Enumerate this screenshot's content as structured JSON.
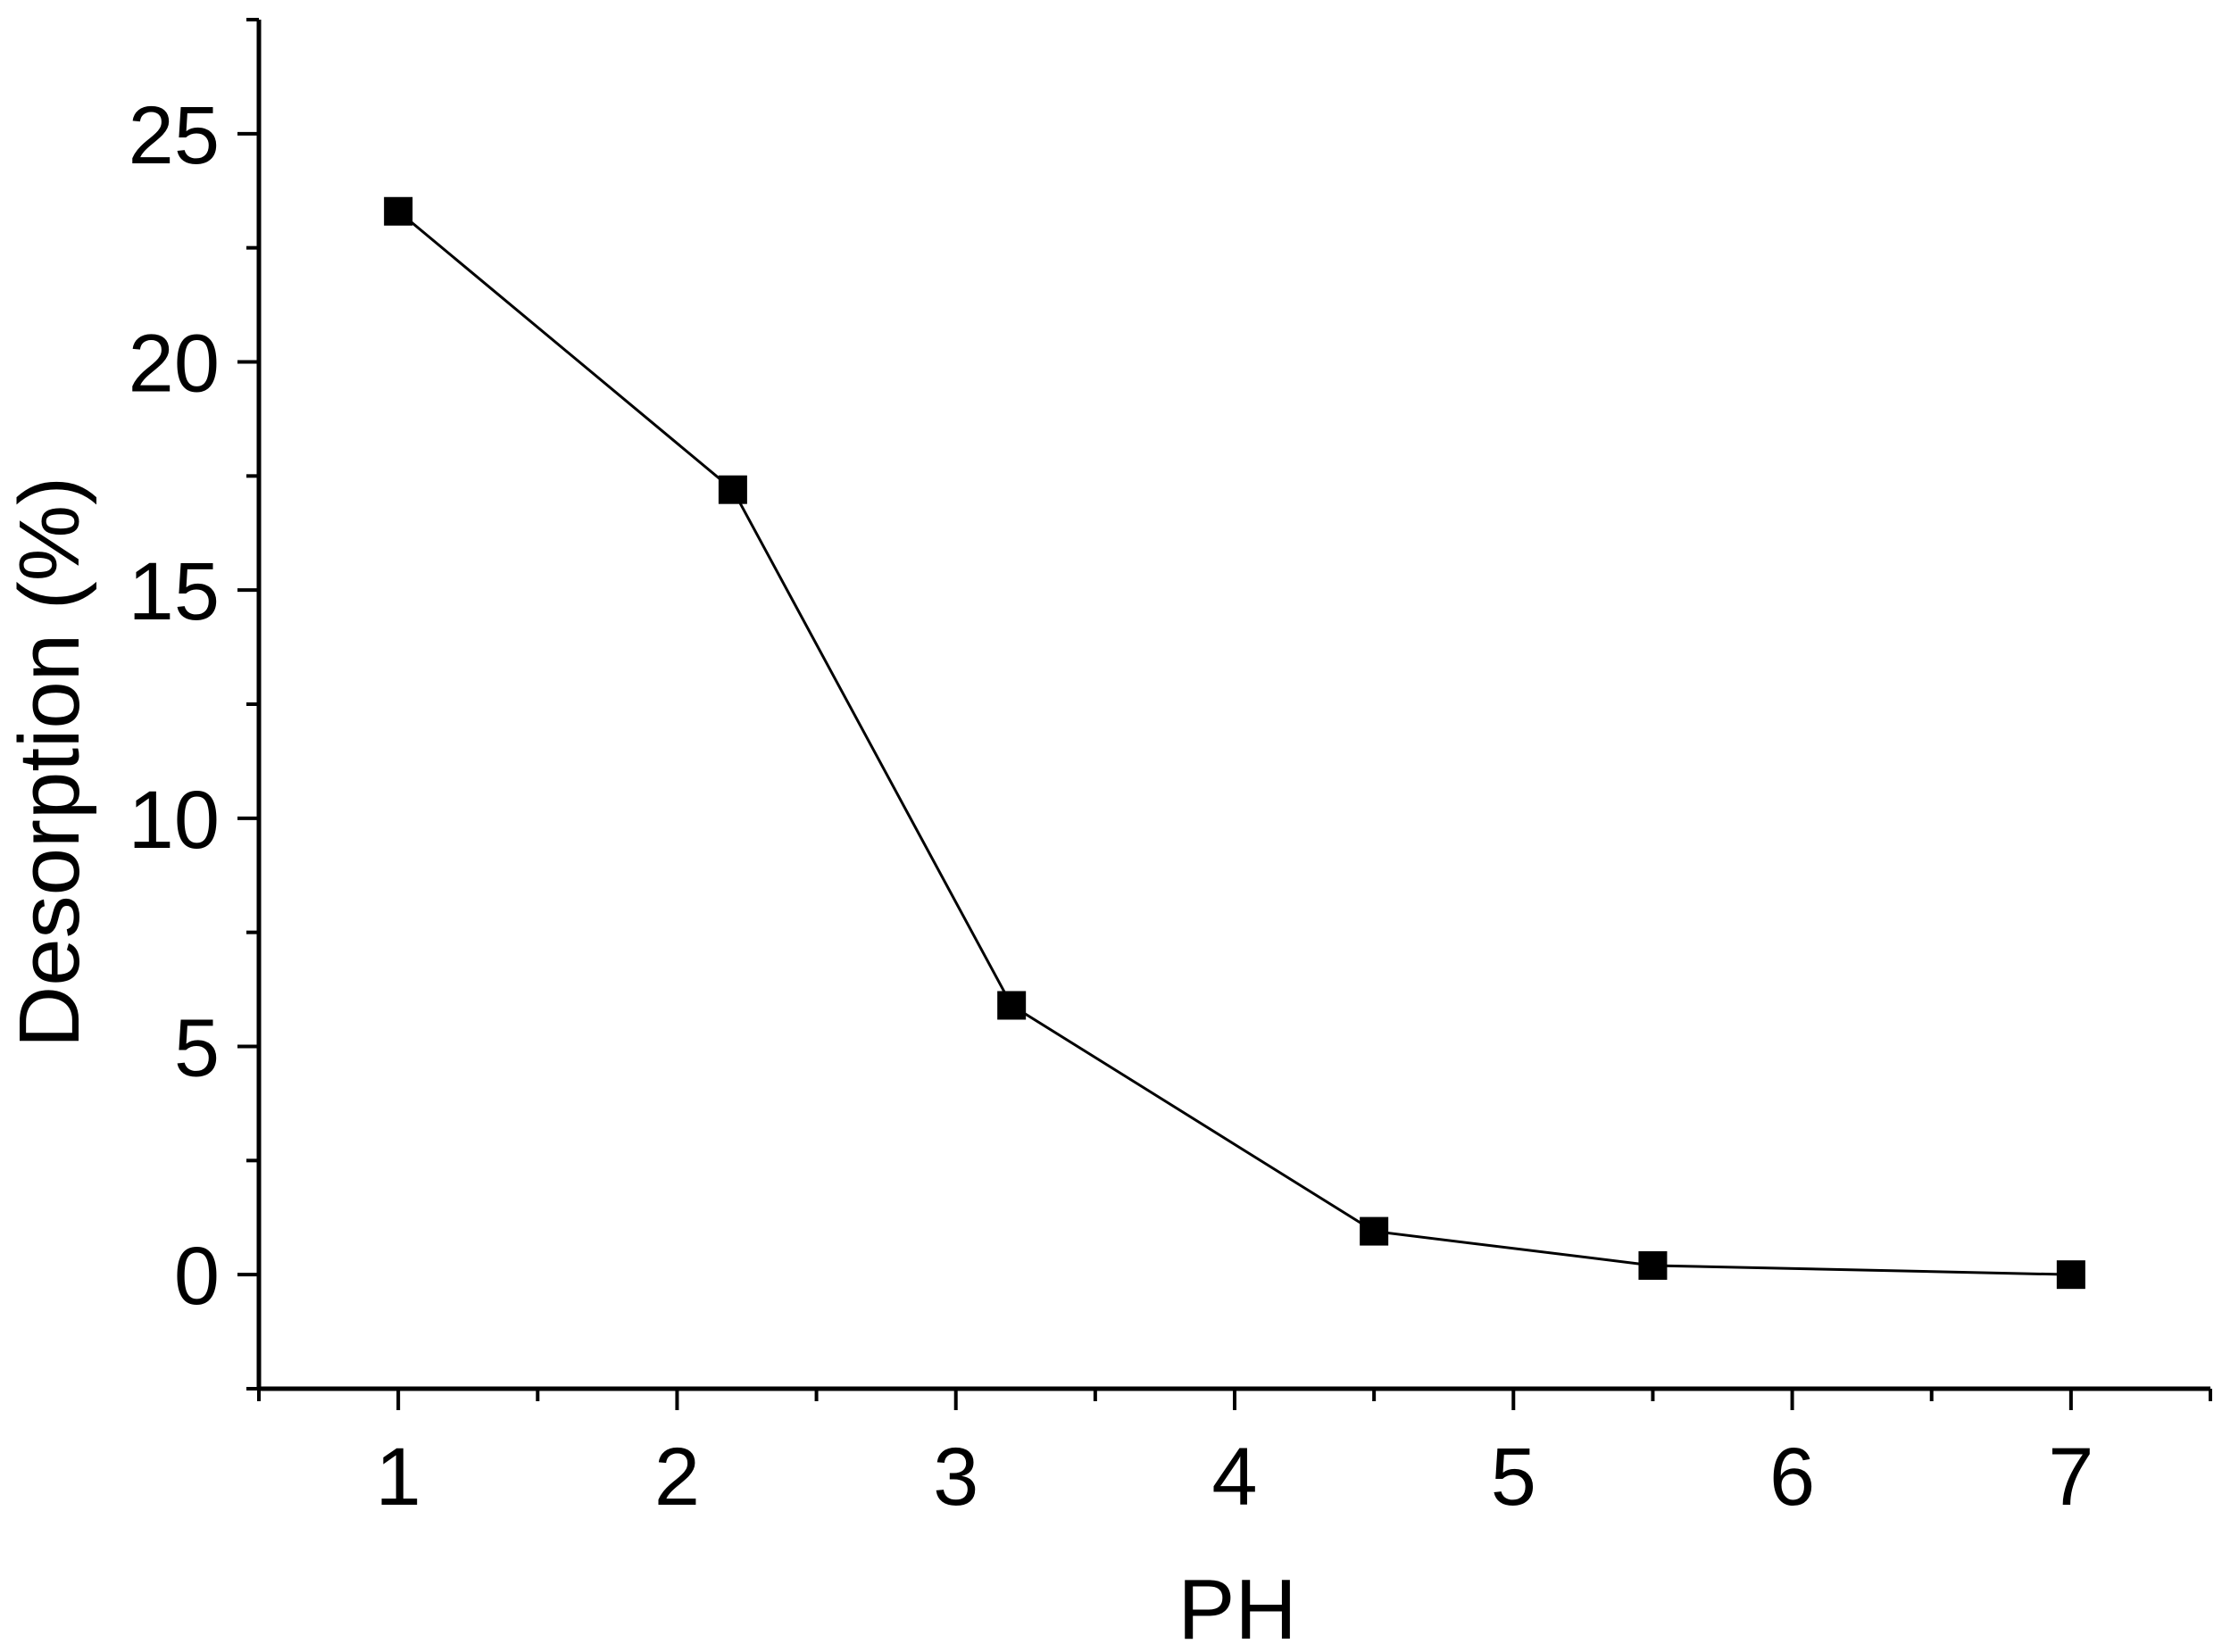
{
  "chart_data": {
    "type": "line",
    "title": "",
    "xlabel": "PH",
    "ylabel": "Desorption (%)",
    "xlim": [
      0.5,
      7.5
    ],
    "ylim": [
      -2.5,
      27.5
    ],
    "x_ticks": [
      "1",
      "2",
      "3",
      "4",
      "5",
      "6",
      "7"
    ],
    "y_ticks": [
      "0",
      "5",
      "10",
      "15",
      "20",
      "25"
    ],
    "grid": false,
    "legend": "none",
    "marker": "square",
    "colors": {
      "line": "#000000",
      "marker": "#000000",
      "axis": "#000000"
    },
    "series": [
      {
        "x": [
          1,
          2.2,
          3.2,
          4.5,
          5.5,
          7
        ],
        "y": [
          23.3,
          17.2,
          5.9,
          0.95,
          0.2,
          0.0
        ]
      }
    ]
  }
}
